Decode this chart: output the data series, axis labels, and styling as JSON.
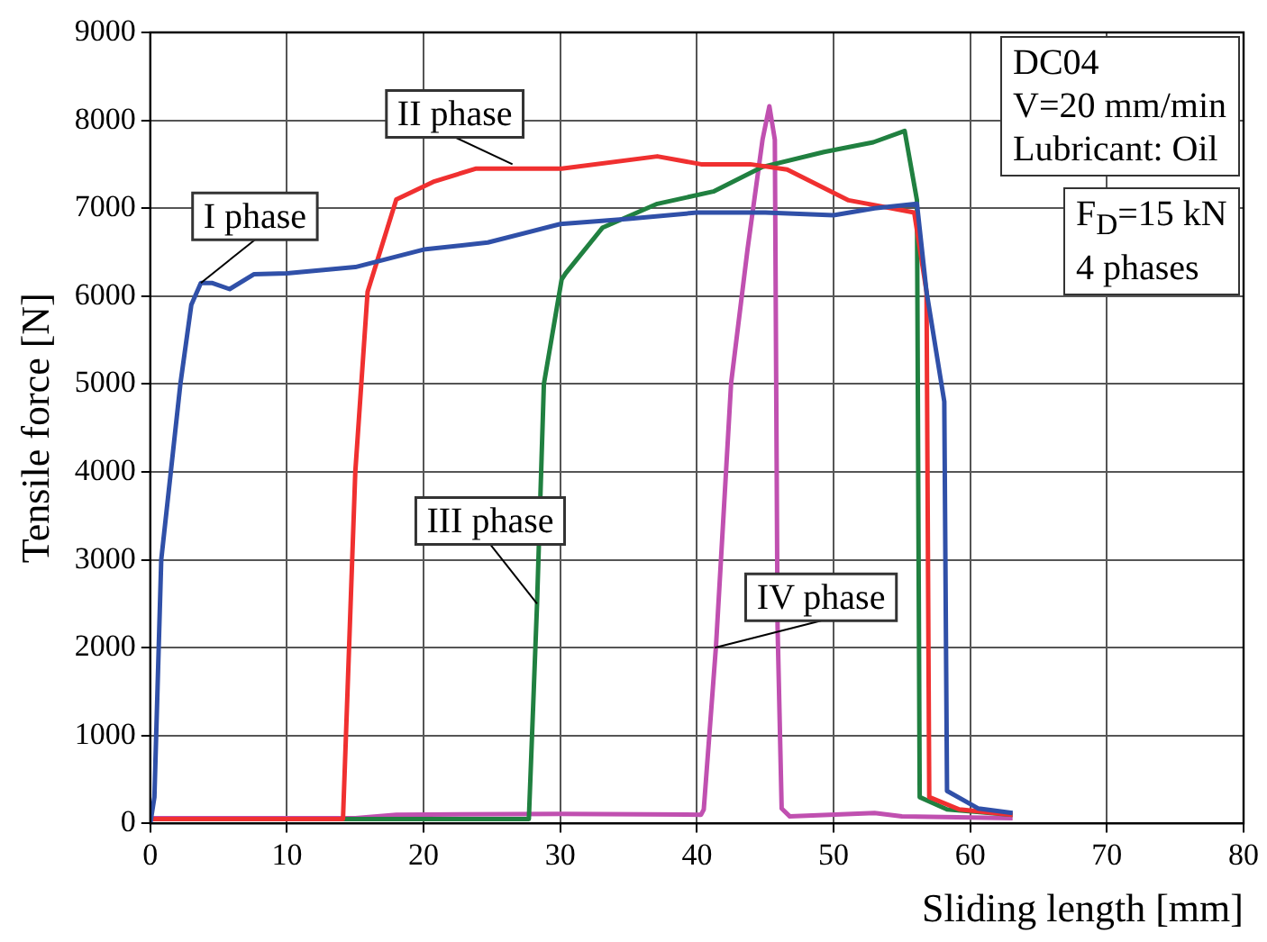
{
  "chart_data": {
    "type": "line",
    "xlabel": "Sliding length [mm]",
    "ylabel": "Tensile force [N]",
    "xlim": [
      0,
      80
    ],
    "ylim": [
      0,
      9000
    ],
    "xticks": [
      0,
      10,
      20,
      30,
      40,
      50,
      60,
      70,
      80
    ],
    "yticks": [
      0,
      1000,
      2000,
      3000,
      4000,
      5000,
      6000,
      7000,
      8000,
      9000
    ],
    "grid": true,
    "legend": false,
    "series": [
      {
        "color": "#3050a8",
        "x": [
          0,
          0.3,
          0.8,
          2.2,
          3,
          3.7,
          4.5,
          5.8,
          7.6,
          10,
          15,
          20,
          24.7,
          30,
          35,
          40,
          45,
          50,
          53,
          56.1,
          56.8,
          58.1,
          58.3,
          60.6,
          63.1
        ],
        "values": [
          0,
          300,
          3000,
          5000,
          5900,
          6150,
          6150,
          6080,
          6250,
          6260,
          6330,
          6530,
          6610,
          6820,
          6880,
          6950,
          6950,
          6920,
          7000,
          7050,
          6050,
          4800,
          370,
          170,
          120
        ]
      },
      {
        "color": "#f03030",
        "x": [
          0,
          14.1,
          15,
          15.9,
          18,
          20.7,
          23.8,
          30.1,
          37.1,
          40.3,
          43.9,
          46.6,
          51.1,
          55.9,
          56.8,
          57,
          59.2,
          63.1
        ],
        "values": [
          50,
          50,
          4000,
          6050,
          7100,
          7300,
          7450,
          7450,
          7590,
          7500,
          7500,
          7440,
          7090,
          6950,
          6050,
          300,
          160,
          100
        ]
      },
      {
        "color": "#208040",
        "x": [
          0,
          27.7,
          28.3,
          28.8,
          30.1,
          30.4,
          33.1,
          37.1,
          41.2,
          44.8,
          49.3,
          52.9,
          55.2,
          56.1,
          56.3,
          58.3,
          63.1
        ],
        "values": [
          50,
          50,
          2500,
          5000,
          6190,
          6260,
          6780,
          7050,
          7190,
          7470,
          7640,
          7750,
          7880,
          7090,
          300,
          160,
          100
        ]
      },
      {
        "color": "#c050b0",
        "x": [
          0,
          15,
          18,
          30,
          40.3,
          40.5,
          41.4,
          42.5,
          43.7,
          44.8,
          45.3,
          45.7,
          45.9,
          46.2,
          46.8,
          53,
          55,
          63.1
        ],
        "values": [
          60,
          60,
          100,
          110,
          100,
          160,
          2030,
          5010,
          6530,
          7780,
          8160,
          7780,
          2240,
          170,
          80,
          120,
          80,
          60
        ]
      }
    ],
    "annotations": [
      {
        "text": "I phase",
        "x": 3.7,
        "y": 6150
      },
      {
        "text": "II phase",
        "x": 26.5,
        "y": 7500
      },
      {
        "text": "III phase",
        "x": 28.3,
        "y": 2500
      },
      {
        "text": "IV phase",
        "x": 41.3,
        "y": 2000
      },
      "DC04\nV=20 mm/min\nLubricant: Oil",
      "F$_{D}$=15 kN\n4 phases"
    ]
  }
}
